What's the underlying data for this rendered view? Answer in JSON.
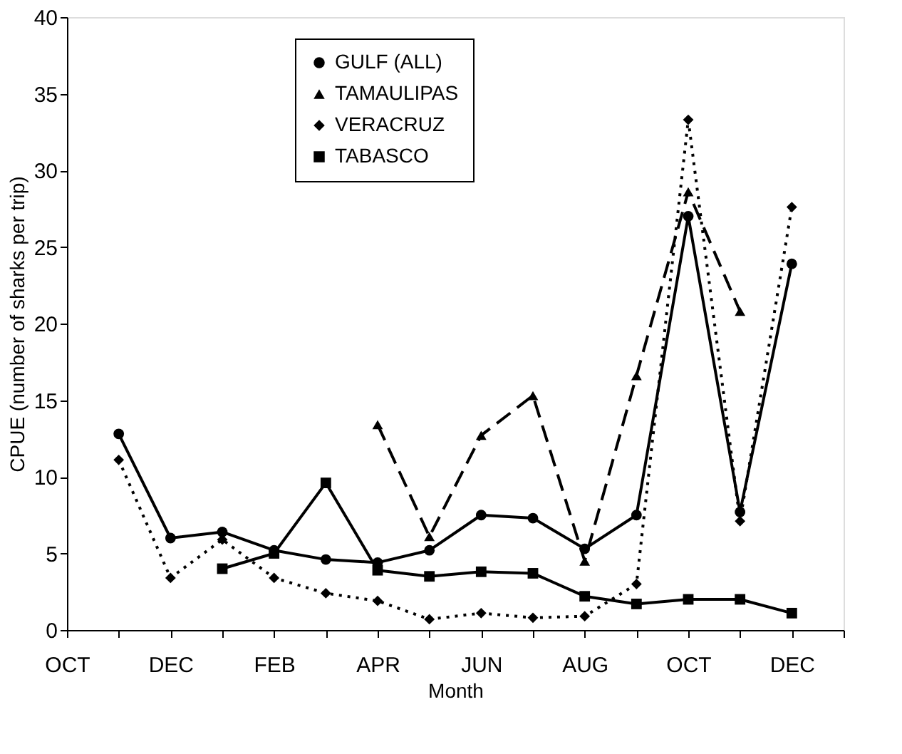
{
  "chart_data": {
    "type": "line",
    "xlabel": "Month",
    "ylabel": "CPUE (number of sharks per trip)",
    "categories": [
      "OCT",
      null,
      "DEC",
      null,
      "FEB",
      null,
      "APR",
      null,
      "JUN",
      null,
      "AUG",
      null,
      "OCT",
      null,
      "DEC",
      null
    ],
    "ylim": [
      0,
      40
    ],
    "yticks": [
      0,
      5,
      10,
      15,
      20,
      25,
      30,
      35,
      40
    ],
    "grid": false,
    "legend": "top",
    "series": [
      {
        "name": "GULF (ALL)",
        "color": "#000000",
        "marker": "circle",
        "line_style": "solid",
        "values": [
          null,
          12.8,
          6.0,
          6.4,
          5.2,
          4.6,
          4.4,
          5.2,
          7.5,
          7.3,
          5.3,
          7.5,
          27.0,
          7.7,
          23.9,
          null
        ]
      },
      {
        "name": "TAMAULIPAS",
        "color": "#000000",
        "marker": "triangle",
        "line_style": "dashed",
        "values": [
          null,
          null,
          null,
          null,
          null,
          null,
          13.4,
          6.1,
          12.7,
          15.3,
          4.5,
          16.6,
          28.6,
          20.8,
          null,
          null
        ]
      },
      {
        "name": "VERACRUZ",
        "color": "#000000",
        "marker": "diamond",
        "line_style": "dotted",
        "values": [
          null,
          11.1,
          3.4,
          5.9,
          3.4,
          2.4,
          1.9,
          0.7,
          1.1,
          0.8,
          0.9,
          3.0,
          33.3,
          7.1,
          27.6,
          null
        ]
      },
      {
        "name": "TABASCO",
        "color": "#000000",
        "marker": "square",
        "line_style": "solid",
        "values": [
          null,
          null,
          null,
          4.0,
          5.0,
          9.6,
          3.9,
          3.5,
          3.8,
          3.7,
          2.2,
          1.7,
          2.0,
          2.0,
          1.1,
          null
        ]
      }
    ]
  }
}
